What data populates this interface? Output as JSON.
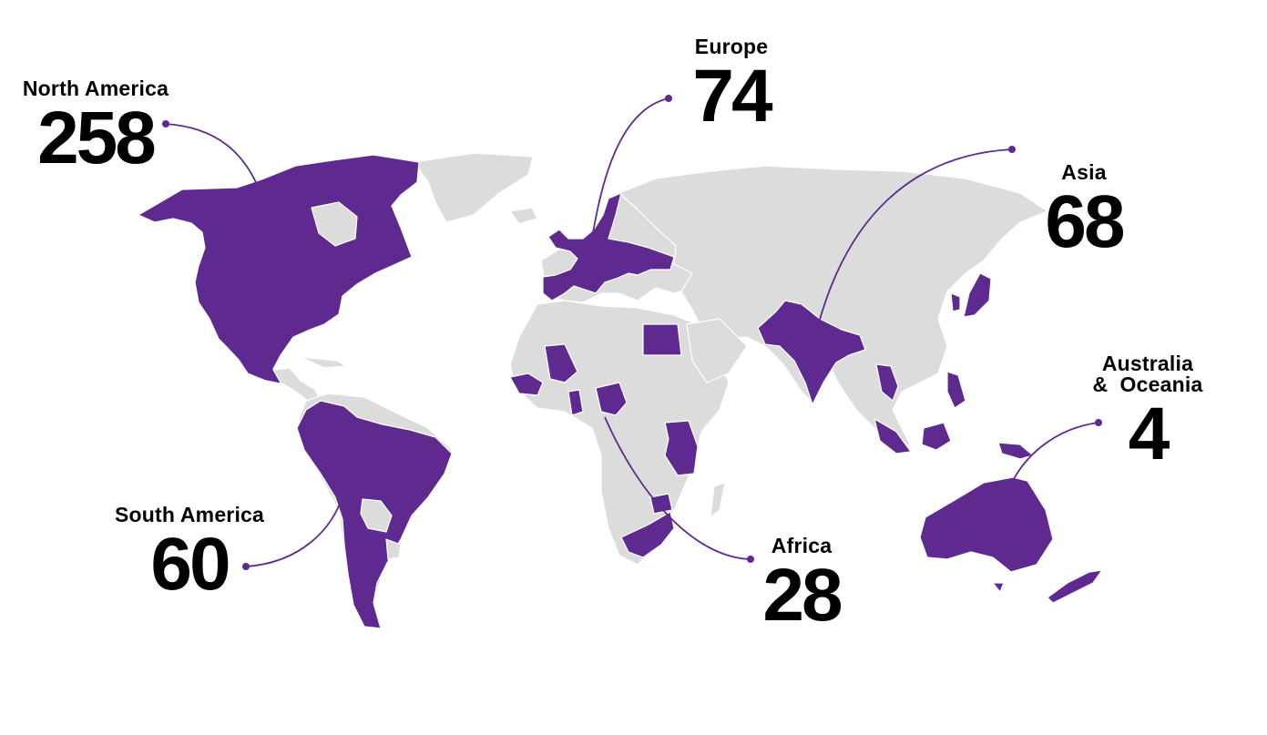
{
  "colors": {
    "highlight": "#5f2a8f",
    "land": "#dcdcdc",
    "background": "#ffffff",
    "text": "#000000"
  },
  "regions": [
    {
      "id": "north-america",
      "name": "North America",
      "count": "258"
    },
    {
      "id": "europe",
      "name": "Europe",
      "count": "74"
    },
    {
      "id": "asia",
      "name": "Asia",
      "count": "68"
    },
    {
      "id": "australia-oceania",
      "name_line1": "Australia",
      "name_line2": "&  Oceania",
      "count": "4"
    },
    {
      "id": "south-america",
      "name": "South America",
      "count": "60"
    },
    {
      "id": "africa",
      "name": "Africa",
      "count": "28"
    }
  ]
}
